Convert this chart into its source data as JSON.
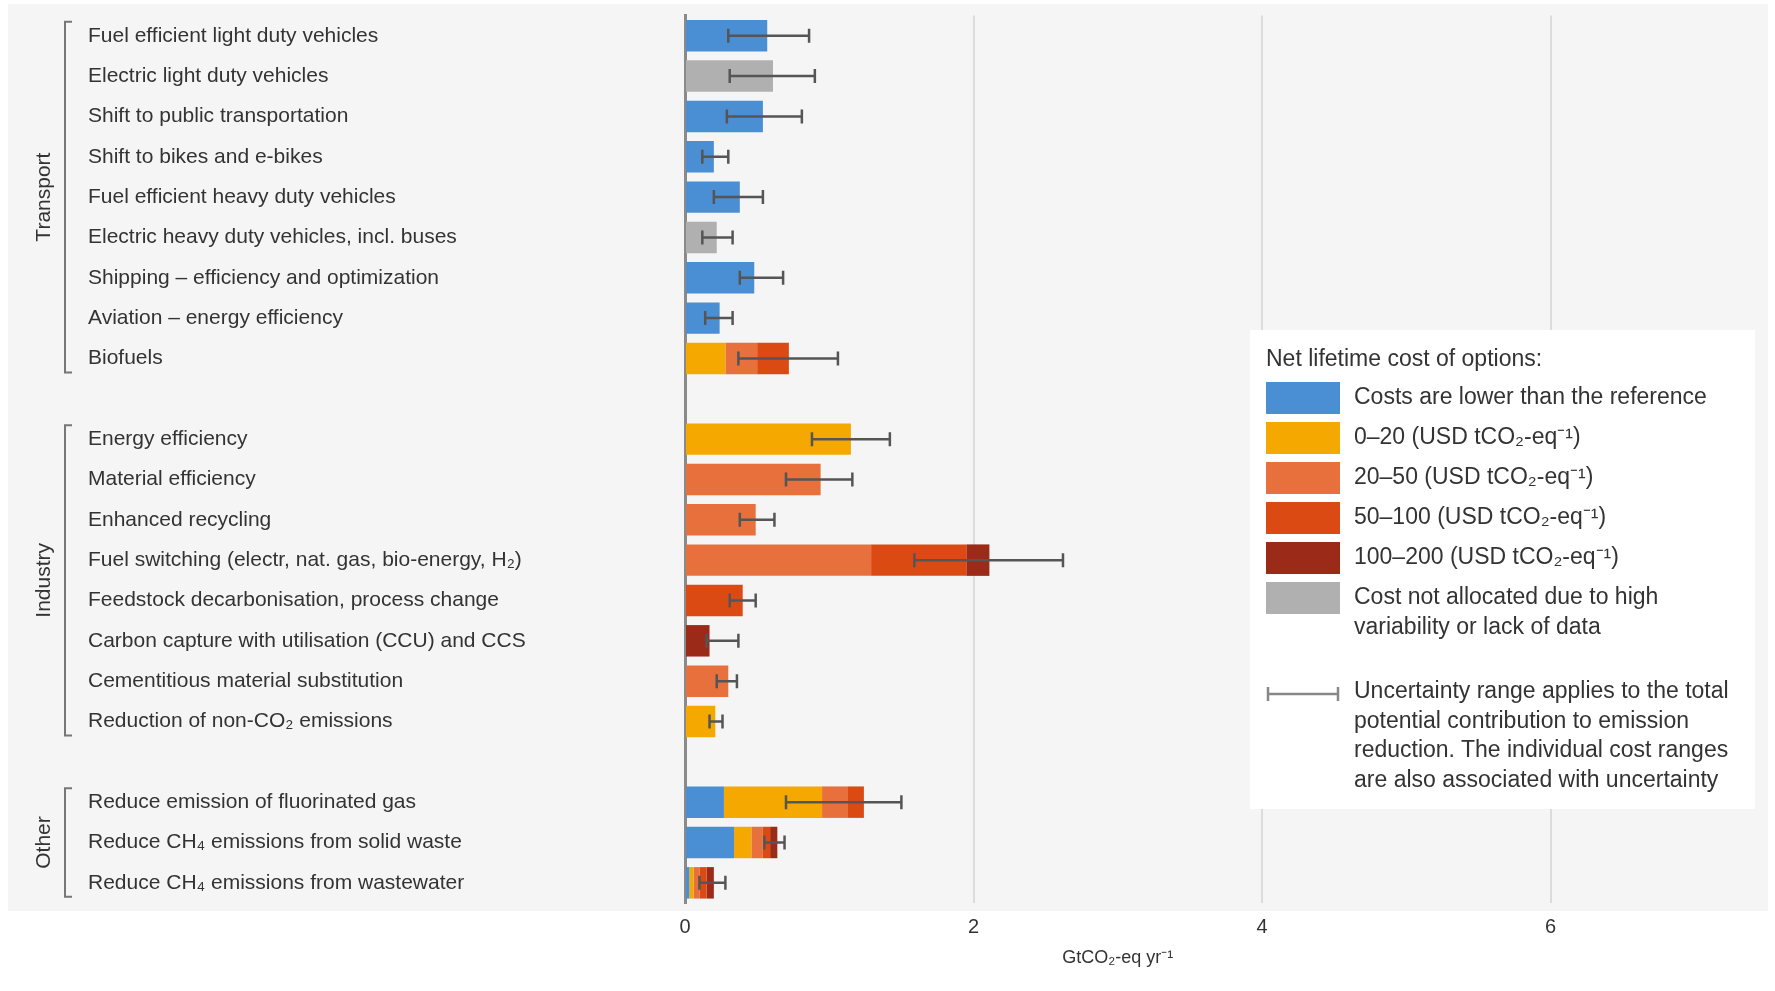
{
  "chart_data": {
    "type": "bar",
    "orientation": "horizontal",
    "stacked": true,
    "categories": [
      "Fuel efficient light duty vehicles",
      "Electric light duty vehicles",
      "Shift to public transportation",
      "Shift to bikes and e-bikes",
      "Fuel efficient heavy duty vehicles",
      "Electric heavy duty vehicles, incl. buses",
      "Shipping – efficiency and optimization",
      "Aviation – energy efficiency",
      "Biofuels",
      null,
      "Energy efficiency",
      "Material efficiency",
      "Enhanced recycling",
      "Fuel switching (electr, nat. gas, bio-energy, H₂)",
      "Feedstock decarbonisation, process change",
      "Carbon capture with utilisation (CCU) and CCS",
      "Cementitious material substitution",
      "Reduction of non-CO₂ emissions",
      null,
      "Reduce emission of fluorinated gas",
      "Reduce CH₄ emissions from solid waste",
      "Reduce CH₄ emissions from wastewater"
    ],
    "series": [
      {
        "name": "Costs are lower than the reference",
        "color": "#4a8fd4",
        "values": [
          0.57,
          null,
          0.54,
          0.2,
          0.38,
          null,
          0.48,
          0.24,
          null,
          null,
          null,
          null,
          null,
          null,
          null,
          null,
          null,
          null,
          null,
          0.27,
          0.34,
          0.03
        ],
        "errors": [
          [
            0.3,
            0.86
          ],
          null,
          [
            0.29,
            0.81
          ],
          [
            0.12,
            0.3
          ],
          [
            0.2,
            0.54
          ],
          null,
          [
            0.38,
            0.68
          ],
          [
            0.14,
            0.33
          ],
          null,
          null,
          null,
          null,
          null,
          null,
          null,
          null,
          null,
          null,
          null,
          null,
          null,
          null
        ]
      },
      {
        "name": "0–20 (USD tCO₂-eq⁻¹)",
        "color": "#f5a800",
        "values": [
          null,
          null,
          null,
          null,
          null,
          null,
          null,
          null,
          0.28,
          null,
          1.15,
          null,
          null,
          null,
          null,
          null,
          null,
          0.21,
          null,
          0.68,
          0.12,
          0.03
        ],
        "errors": [
          null,
          null,
          null,
          null,
          null,
          null,
          null,
          null,
          null,
          null,
          [
            0.88,
            1.42
          ],
          null,
          null,
          null,
          null,
          null,
          null,
          [
            0.17,
            0.26
          ],
          null,
          null,
          null,
          null
        ]
      },
      {
        "name": "20–50 (USD tCO₂-eq⁻¹)",
        "color": "#e8703c",
        "values": [
          null,
          null,
          null,
          null,
          null,
          null,
          null,
          null,
          0.22,
          null,
          null,
          0.94,
          0.49,
          1.29,
          null,
          null,
          0.3,
          null,
          null,
          0.18,
          0.08,
          0.04
        ],
        "errors": [
          null,
          null,
          null,
          null,
          null,
          null,
          null,
          null,
          null,
          null,
          null,
          [
            0.7,
            1.16
          ],
          [
            0.38,
            0.62
          ],
          null,
          null,
          null,
          [
            0.22,
            0.36
          ],
          null,
          null,
          null,
          null,
          null
        ]
      },
      {
        "name": "50–100 (USD tCO₂-eq⁻¹)",
        "color": "#dc4a14",
        "values": [
          null,
          null,
          null,
          null,
          null,
          null,
          null,
          null,
          0.22,
          null,
          null,
          null,
          null,
          0.66,
          0.4,
          null,
          null,
          null,
          null,
          0.11,
          0.05,
          0.05
        ],
        "errors": [
          null,
          null,
          null,
          null,
          null,
          null,
          null,
          null,
          [
            0.37,
            1.06
          ],
          null,
          null,
          null,
          null,
          null,
          [
            0.31,
            0.49
          ],
          null,
          null,
          null,
          null,
          [
            0.7,
            1.5
          ],
          null,
          null
        ]
      },
      {
        "name": "100–200 (USD tCO₂-eq⁻¹)",
        "color": "#9b2a18",
        "values": [
          null,
          null,
          null,
          null,
          null,
          null,
          null,
          null,
          null,
          null,
          null,
          null,
          null,
          0.16,
          null,
          0.17,
          null,
          null,
          null,
          null,
          0.05,
          0.05
        ],
        "errors": [
          null,
          null,
          null,
          null,
          null,
          null,
          null,
          null,
          null,
          null,
          null,
          null,
          null,
          [
            1.59,
            2.62
          ],
          null,
          [
            0.15,
            0.37
          ],
          null,
          null,
          null,
          null,
          [
            0.55,
            0.69
          ],
          [
            0.1,
            0.28
          ]
        ]
      },
      {
        "name": "Cost not allocated due to high variability or lack of data",
        "color": "#b0b0b0",
        "values": [
          null,
          0.61,
          null,
          null,
          null,
          0.22,
          null,
          null,
          null,
          null,
          null,
          null,
          null,
          null,
          null,
          null,
          null,
          null,
          null,
          null,
          null,
          null
        ],
        "errors": [
          null,
          [
            0.31,
            0.9
          ],
          null,
          null,
          null,
          [
            0.12,
            0.33
          ],
          null,
          null,
          null,
          null,
          null,
          null,
          null,
          null,
          null,
          null,
          null,
          null,
          null,
          null,
          null,
          null
        ]
      }
    ],
    "xlim": [
      0,
      7.5
    ],
    "xticks": [
      0,
      2,
      4,
      6
    ],
    "grid": "x",
    "xlabel": "GtCO₂-eq yr⁻¹",
    "legend": "right",
    "legend_title": "Net lifetime cost of options:",
    "annotations": [
      "Transport",
      "Industry",
      "Other",
      "Uncertainty range applies to the total potential contribution to emission reduction. The individual cost ranges are also associated with uncertainty"
    ]
  }
}
